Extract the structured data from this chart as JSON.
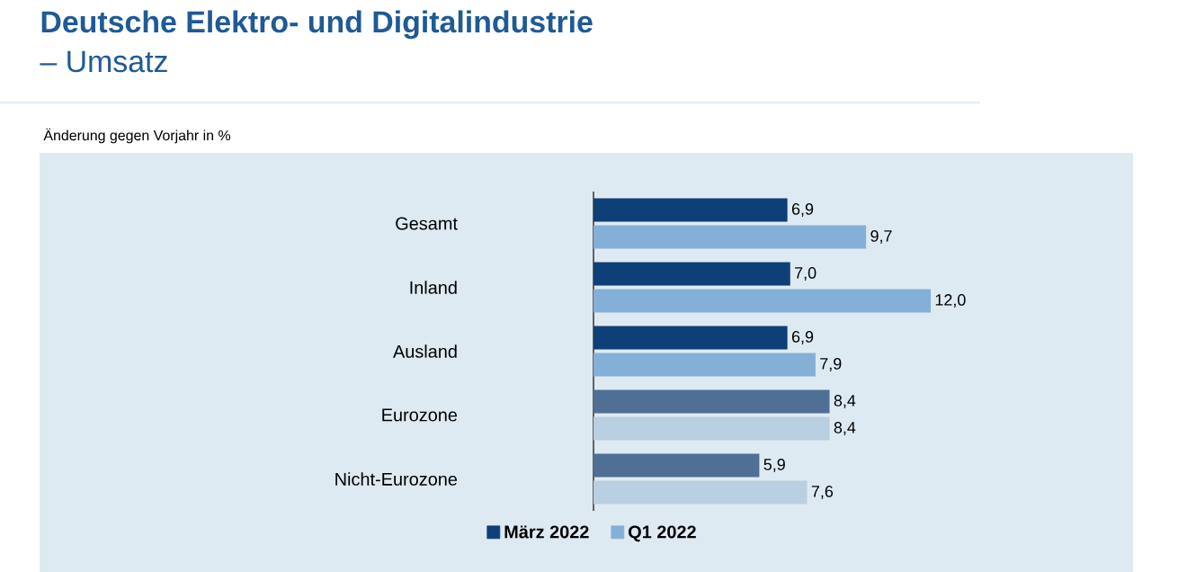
{
  "chart_data": {
    "type": "bar",
    "orientation": "horizontal",
    "title": "Deutsche Elektro- und Digitalindustrie",
    "subtitle": "– Umsatz",
    "annotations": [
      "Änderung gegen Vorjahr in %"
    ],
    "categories": [
      "Gesamt",
      "Inland",
      "Ausland",
      "Eurozone",
      "Nicht-Eurozone"
    ],
    "series": [
      {
        "name": "März 2022",
        "color": "#0e3f77",
        "colors": [
          "#0e3f77",
          "#0e3f77",
          "#0e3f77",
          "#4f6f95",
          "#4f6f95"
        ],
        "values": [
          6.9,
          7.0,
          6.9,
          8.4,
          5.9
        ],
        "value_labels": [
          "6,9",
          "7,0",
          "6,9",
          "8,4",
          "5,9"
        ]
      },
      {
        "name": "Q1 2022",
        "color": "#84b0d8",
        "colors": [
          "#84b0d8",
          "#84b0d8",
          "#84b0d8",
          "#b9cfe2",
          "#b9cfe2"
        ],
        "values": [
          9.7,
          12.0,
          7.9,
          8.4,
          7.6
        ],
        "value_labels": [
          "9,7",
          "12,0",
          "7,9",
          "8,4",
          "7,6"
        ]
      }
    ],
    "legend": "bottom"
  }
}
